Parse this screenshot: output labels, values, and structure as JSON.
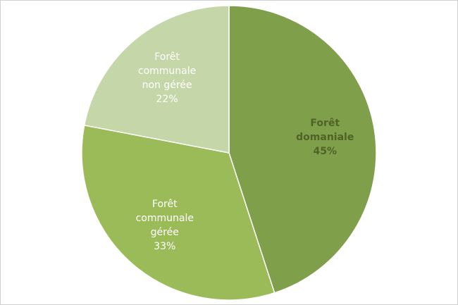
{
  "chart_data": {
    "type": "pie",
    "categories": [
      "Forêt domaniale",
      "Forêt communale gérée",
      "Forêt communale non gérée"
    ],
    "values": [
      45,
      33,
      22
    ],
    "value_labels": [
      "45%",
      "33%",
      "22%"
    ],
    "colors": [
      "#7f9f4a",
      "#9bbb59",
      "#c5d6a8"
    ]
  }
}
